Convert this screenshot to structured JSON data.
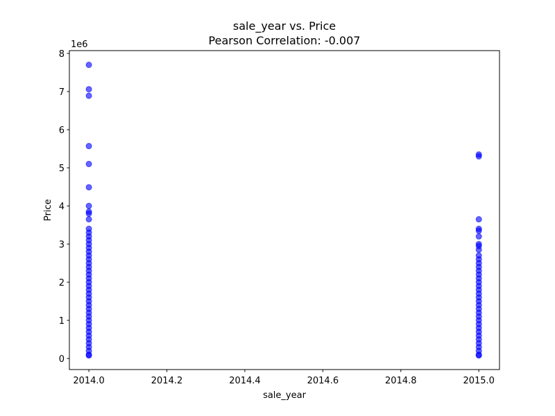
{
  "chart_data": {
    "type": "scatter",
    "title": "sale_year vs. Price",
    "subtitle": "Pearson Correlation: -0.007",
    "x_label": "sale_year",
    "y_label": "Price",
    "y_offset_label": "1e6",
    "color": "#0000ff",
    "x": [
      2014,
      2014,
      2014,
      2014,
      2014,
      2014,
      2014,
      2014,
      2014,
      2014,
      2014,
      2014,
      2014,
      2014,
      2014,
      2014,
      2014,
      2014,
      2014,
      2014,
      2014,
      2014,
      2014,
      2014,
      2014,
      2014,
      2014,
      2014,
      2014,
      2014,
      2014,
      2014,
      2014,
      2014,
      2014,
      2014,
      2014,
      2014,
      2014,
      2014,
      2014,
      2014,
      2014,
      2014,
      2014,
      2015,
      2015,
      2015,
      2015,
      2015,
      2015,
      2015,
      2015,
      2015,
      2015,
      2015,
      2015,
      2015,
      2015,
      2015,
      2015,
      2015,
      2015,
      2015,
      2015,
      2015,
      2015,
      2015,
      2015,
      2015,
      2015,
      2015,
      2015,
      2015,
      2015,
      2015,
      2015,
      2015,
      2015,
      2015,
      2015,
      2015
    ],
    "values": [
      7.7,
      7.06,
      6.89,
      5.57,
      5.1,
      4.49,
      4.0,
      3.85,
      3.8,
      3.65,
      3.4,
      3.3,
      3.2,
      3.1,
      3.0,
      2.9,
      2.8,
      2.7,
      2.6,
      2.5,
      2.4,
      2.3,
      2.2,
      2.1,
      2.0,
      1.9,
      1.8,
      1.7,
      1.6,
      1.5,
      1.4,
      1.3,
      1.2,
      1.1,
      1.0,
      0.9,
      0.8,
      0.7,
      0.6,
      0.5,
      0.4,
      0.3,
      0.2,
      0.1,
      0.08,
      5.35,
      5.3,
      3.65,
      3.4,
      3.35,
      3.2,
      3.0,
      2.95,
      2.85,
      2.7,
      2.6,
      2.5,
      2.4,
      2.3,
      2.2,
      2.1,
      2.0,
      1.9,
      1.8,
      1.7,
      1.6,
      1.5,
      1.4,
      1.3,
      1.2,
      1.1,
      1.0,
      0.9,
      0.8,
      0.7,
      0.6,
      0.5,
      0.4,
      0.3,
      0.2,
      0.1,
      0.08
    ],
    "xlim": [
      2013.95,
      2015.053
    ],
    "ylim": [
      -0.29,
      8.073
    ],
    "xticks": [
      {
        "value": 2014.0,
        "label": "2014.0"
      },
      {
        "value": 2014.2,
        "label": "2014.2"
      },
      {
        "value": 2014.4,
        "label": "2014.4"
      },
      {
        "value": 2014.6,
        "label": "2014.6"
      },
      {
        "value": 2014.8,
        "label": "2014.8"
      },
      {
        "value": 2015.0,
        "label": "2015.0"
      }
    ],
    "yticks": [
      0,
      1,
      2,
      3,
      4,
      5,
      6,
      7,
      8
    ],
    "grid": false
  }
}
